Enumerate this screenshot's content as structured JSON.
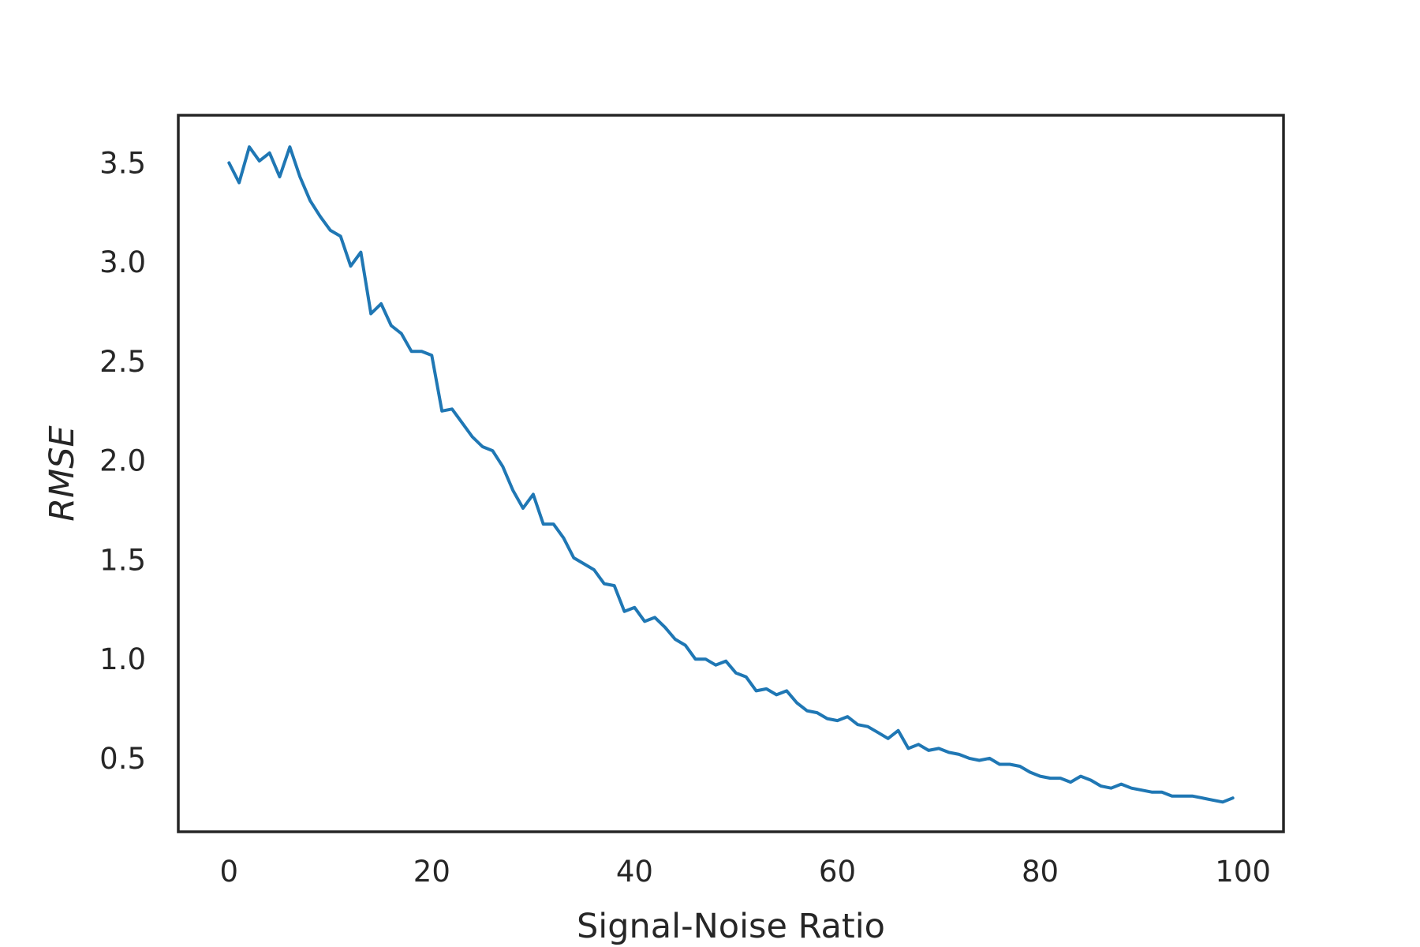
{
  "chart_data": {
    "type": "line",
    "title": "",
    "xlabel": "Signal-Noise Ratio",
    "ylabel": "RMSE",
    "xlim": [
      -5,
      104
    ],
    "ylim": [
      0.13,
      3.74
    ],
    "x_ticks": [
      0,
      20,
      40,
      60,
      80,
      100
    ],
    "x_tick_labels": [
      "0",
      "20",
      "40",
      "60",
      "80",
      "100"
    ],
    "y_ticks": [
      0.5,
      1.0,
      1.5,
      2.0,
      2.5,
      3.0,
      3.5
    ],
    "y_tick_labels": [
      "0.5",
      "1.0",
      "1.5",
      "2.0",
      "2.5",
      "3.0",
      "3.5"
    ],
    "grid": false,
    "legend": "none",
    "line_color": "#1f77b4",
    "axes_color": "#262626",
    "series": [
      {
        "x": [
          0,
          1,
          2,
          3,
          4,
          5,
          6,
          7,
          8,
          9,
          10,
          11,
          12,
          13,
          14,
          15,
          16,
          17,
          18,
          19,
          20,
          21,
          22,
          23,
          24,
          25,
          26,
          27,
          28,
          29,
          30,
          31,
          32,
          33,
          34,
          35,
          36,
          37,
          38,
          39,
          40,
          41,
          42,
          43,
          44,
          45,
          46,
          47,
          48,
          49,
          50,
          51,
          52,
          53,
          54,
          55,
          56,
          57,
          58,
          59,
          60,
          61,
          62,
          63,
          64,
          65,
          66,
          67,
          68,
          69,
          70,
          71,
          72,
          73,
          74,
          75,
          76,
          77,
          78,
          79,
          80,
          81,
          82,
          83,
          84,
          85,
          86,
          87,
          88,
          89,
          90,
          91,
          92,
          93,
          94,
          95,
          96,
          97,
          98,
          99
        ],
        "values": [
          3.5,
          3.4,
          3.58,
          3.51,
          3.55,
          3.43,
          3.58,
          3.43,
          3.31,
          3.23,
          3.16,
          3.13,
          2.98,
          3.05,
          2.74,
          2.79,
          2.68,
          2.64,
          2.55,
          2.55,
          2.53,
          2.25,
          2.26,
          2.19,
          2.12,
          2.07,
          2.05,
          1.97,
          1.85,
          1.76,
          1.83,
          1.68,
          1.68,
          1.61,
          1.51,
          1.48,
          1.45,
          1.38,
          1.37,
          1.24,
          1.26,
          1.19,
          1.21,
          1.16,
          1.1,
          1.07,
          1.0,
          1.0,
          0.97,
          0.99,
          0.93,
          0.91,
          0.84,
          0.85,
          0.82,
          0.84,
          0.78,
          0.74,
          0.73,
          0.7,
          0.69,
          0.71,
          0.67,
          0.66,
          0.63,
          0.6,
          0.64,
          0.55,
          0.57,
          0.54,
          0.55,
          0.53,
          0.52,
          0.5,
          0.49,
          0.5,
          0.47,
          0.47,
          0.46,
          0.43,
          0.41,
          0.4,
          0.4,
          0.38,
          0.41,
          0.39,
          0.36,
          0.35,
          0.37,
          0.35,
          0.34,
          0.33,
          0.33,
          0.31,
          0.31,
          0.31,
          0.3,
          0.29,
          0.28,
          0.3
        ]
      }
    ]
  }
}
